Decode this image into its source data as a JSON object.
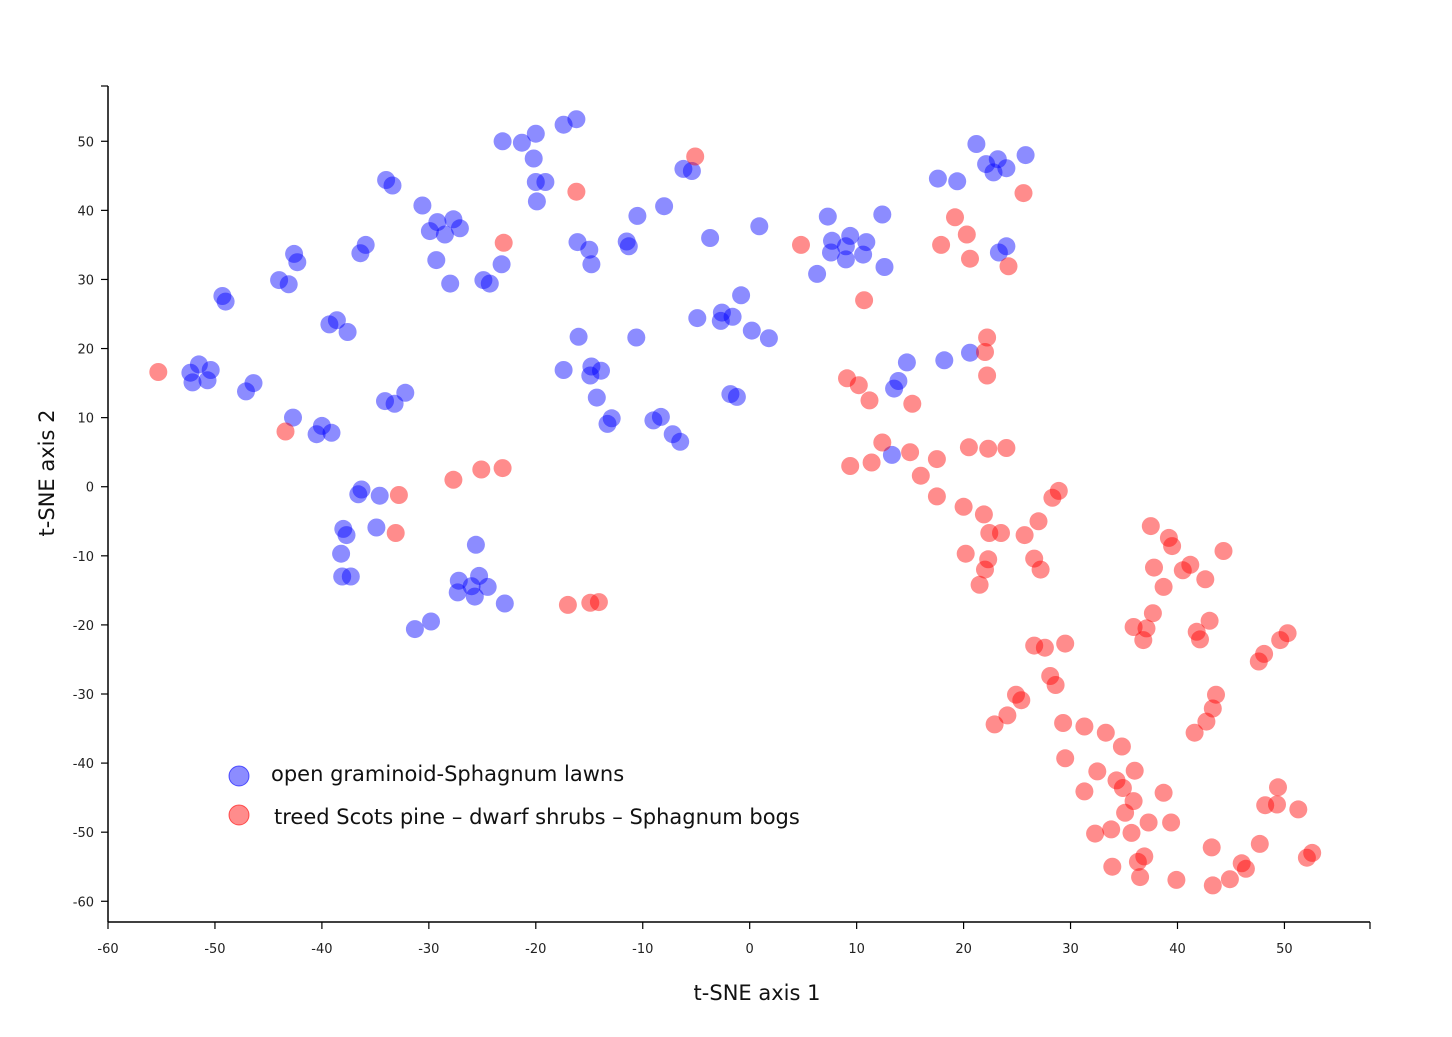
{
  "chart_data": {
    "type": "scatter",
    "title": "",
    "xlabel": "t-SNE axis 1",
    "ylabel": "t-SNE axis 2",
    "xlim": [
      -60,
      58
    ],
    "ylim": [
      -63,
      58
    ],
    "xticks": [
      -60,
      -50,
      -40,
      -30,
      -20,
      -10,
      0,
      10,
      20,
      30,
      40,
      50
    ],
    "yticks": [
      -60,
      -50,
      -40,
      -30,
      -20,
      -10,
      0,
      10,
      20,
      30,
      40,
      50
    ],
    "grid": false,
    "legend_position": "bottom-left",
    "series": [
      {
        "name": "open graminoid-Sphagnum lawns",
        "color": "#0000ff",
        "points": [
          [
            -23.1,
            50.0
          ],
          [
            -21.3,
            49.8
          ],
          [
            -20.0,
            51.1
          ],
          [
            -17.4,
            52.4
          ],
          [
            -16.2,
            53.2
          ],
          [
            -20.2,
            47.5
          ],
          [
            -20.0,
            44.1
          ],
          [
            -19.1,
            44.1
          ],
          [
            -19.9,
            41.3
          ],
          [
            -34.0,
            44.4
          ],
          [
            -33.4,
            43.6
          ],
          [
            -30.6,
            40.7
          ],
          [
            -29.9,
            37.0
          ],
          [
            -29.2,
            38.3
          ],
          [
            -28.5,
            36.5
          ],
          [
            -27.7,
            38.7
          ],
          [
            -27.1,
            37.4
          ],
          [
            -29.3,
            32.8
          ],
          [
            -28.0,
            29.4
          ],
          [
            -24.9,
            29.9
          ],
          [
            -24.3,
            29.4
          ],
          [
            -23.2,
            32.2
          ],
          [
            -35.9,
            35.0
          ],
          [
            -36.4,
            33.8
          ],
          [
            -42.6,
            33.7
          ],
          [
            -42.3,
            32.5
          ],
          [
            -44.0,
            29.9
          ],
          [
            -43.1,
            29.3
          ],
          [
            -49.3,
            27.6
          ],
          [
            -49.0,
            26.8
          ],
          [
            -38.6,
            24.1
          ],
          [
            -39.3,
            23.5
          ],
          [
            -37.6,
            22.4
          ],
          [
            -52.3,
            16.5
          ],
          [
            -51.5,
            17.7
          ],
          [
            -50.4,
            16.9
          ],
          [
            -52.1,
            15.1
          ],
          [
            -50.7,
            15.4
          ],
          [
            -46.4,
            15.0
          ],
          [
            -47.1,
            13.8
          ],
          [
            -34.1,
            12.4
          ],
          [
            -33.2,
            12.0
          ],
          [
            -32.2,
            13.6
          ],
          [
            -42.7,
            10.0
          ],
          [
            -40.0,
            8.8
          ],
          [
            -40.5,
            7.6
          ],
          [
            -39.1,
            7.8
          ],
          [
            -36.3,
            -0.4
          ],
          [
            -36.6,
            -1.1
          ],
          [
            -34.6,
            -1.3
          ],
          [
            -38.0,
            -6.1
          ],
          [
            -37.7,
            -7.0
          ],
          [
            -38.2,
            -9.7
          ],
          [
            -38.1,
            -13.0
          ],
          [
            -37.3,
            -13.0
          ],
          [
            -34.9,
            -5.9
          ],
          [
            -25.6,
            -8.4
          ],
          [
            -27.2,
            -13.6
          ],
          [
            -25.3,
            -12.9
          ],
          [
            -26.0,
            -14.4
          ],
          [
            -24.5,
            -14.5
          ],
          [
            -27.3,
            -15.3
          ],
          [
            -25.7,
            -15.9
          ],
          [
            -22.9,
            -16.9
          ],
          [
            -29.8,
            -19.5
          ],
          [
            -31.3,
            -20.6
          ],
          [
            -16.1,
            35.4
          ],
          [
            -15.0,
            34.3
          ],
          [
            -14.8,
            32.2
          ],
          [
            -11.5,
            35.5
          ],
          [
            -11.3,
            34.8
          ],
          [
            -10.5,
            39.2
          ],
          [
            -8.0,
            40.6
          ],
          [
            -6.2,
            46.0
          ],
          [
            -5.4,
            45.7
          ],
          [
            -3.7,
            36.0
          ],
          [
            0.9,
            37.7
          ],
          [
            -16.0,
            21.7
          ],
          [
            -10.6,
            21.6
          ],
          [
            -17.4,
            16.9
          ],
          [
            -14.8,
            17.4
          ],
          [
            -14.9,
            16.1
          ],
          [
            -13.9,
            16.8
          ],
          [
            -14.3,
            12.9
          ],
          [
            -13.3,
            9.1
          ],
          [
            -12.9,
            9.9
          ],
          [
            -9.0,
            9.6
          ],
          [
            -8.3,
            10.1
          ],
          [
            -7.2,
            7.6
          ],
          [
            -6.5,
            6.5
          ],
          [
            -4.9,
            24.4
          ],
          [
            -2.6,
            25.2
          ],
          [
            -2.7,
            24.0
          ],
          [
            -1.6,
            24.6
          ],
          [
            -1.8,
            13.4
          ],
          [
            -1.2,
            13.0
          ],
          [
            -0.8,
            27.7
          ],
          [
            0.2,
            22.6
          ],
          [
            1.8,
            21.5
          ],
          [
            7.3,
            39.1
          ],
          [
            7.7,
            35.6
          ],
          [
            7.6,
            33.9
          ],
          [
            9.0,
            34.8
          ],
          [
            9.4,
            36.3
          ],
          [
            9.0,
            32.9
          ],
          [
            10.6,
            33.6
          ],
          [
            10.9,
            35.4
          ],
          [
            12.4,
            39.4
          ],
          [
            12.6,
            31.8
          ],
          [
            6.3,
            30.8
          ],
          [
            17.6,
            44.6
          ],
          [
            19.4,
            44.2
          ],
          [
            21.2,
            49.6
          ],
          [
            22.1,
            46.7
          ],
          [
            22.8,
            45.5
          ],
          [
            23.2,
            47.4
          ],
          [
            24.0,
            46.1
          ],
          [
            25.8,
            48.0
          ],
          [
            23.3,
            33.9
          ],
          [
            24.0,
            34.8
          ],
          [
            14.7,
            18.0
          ],
          [
            13.9,
            15.3
          ],
          [
            13.5,
            14.2
          ],
          [
            18.2,
            18.3
          ],
          [
            20.6,
            19.4
          ],
          [
            13.3,
            4.6
          ]
        ]
      },
      {
        "name": "treed Scots pine – dwarf shrubs – Sphagnum bogs",
        "color": "#ff0000",
        "points": [
          [
            -55.3,
            16.6
          ],
          [
            -43.4,
            8.0
          ],
          [
            -32.8,
            -1.2
          ],
          [
            -33.1,
            -6.7
          ],
          [
            -27.7,
            1.0
          ],
          [
            -25.1,
            2.5
          ],
          [
            -23.1,
            2.7
          ],
          [
            -23.0,
            35.3
          ],
          [
            -16.2,
            42.7
          ],
          [
            -5.1,
            47.8
          ],
          [
            -17.0,
            -17.1
          ],
          [
            -14.9,
            -16.8
          ],
          [
            -14.1,
            -16.7
          ],
          [
            4.8,
            35.0
          ],
          [
            10.7,
            27.0
          ],
          [
            9.1,
            15.7
          ],
          [
            10.2,
            14.7
          ],
          [
            11.2,
            12.5
          ],
          [
            15.2,
            12.0
          ],
          [
            12.4,
            6.4
          ],
          [
            11.4,
            3.5
          ],
          [
            9.4,
            3.0
          ],
          [
            15.0,
            5.0
          ],
          [
            17.5,
            4.0
          ],
          [
            16.0,
            1.6
          ],
          [
            17.5,
            -1.4
          ],
          [
            19.2,
            39.0
          ],
          [
            17.9,
            35.0
          ],
          [
            20.3,
            36.5
          ],
          [
            20.6,
            33.0
          ],
          [
            24.2,
            31.9
          ],
          [
            25.6,
            42.5
          ],
          [
            22.2,
            21.6
          ],
          [
            22.0,
            19.5
          ],
          [
            22.2,
            16.1
          ],
          [
            20.5,
            5.7
          ],
          [
            22.3,
            5.5
          ],
          [
            24.0,
            5.6
          ],
          [
            20.0,
            -2.9
          ],
          [
            21.9,
            -4.0
          ],
          [
            22.4,
            -6.7
          ],
          [
            23.5,
            -6.7
          ],
          [
            20.2,
            -9.7
          ],
          [
            22.3,
            -10.5
          ],
          [
            22.0,
            -12.0
          ],
          [
            21.5,
            -14.2
          ],
          [
            27.0,
            -5.0
          ],
          [
            25.7,
            -7.0
          ],
          [
            26.6,
            -10.4
          ],
          [
            27.2,
            -12.0
          ],
          [
            28.3,
            -1.6
          ],
          [
            28.9,
            -0.6
          ],
          [
            26.6,
            -23.0
          ],
          [
            27.6,
            -23.3
          ],
          [
            29.5,
            -22.7
          ],
          [
            28.1,
            -27.4
          ],
          [
            28.6,
            -28.7
          ],
          [
            24.9,
            -30.1
          ],
          [
            25.4,
            -30.9
          ],
          [
            24.1,
            -33.1
          ],
          [
            22.9,
            -34.4
          ],
          [
            29.3,
            -34.2
          ],
          [
            31.3,
            -34.7
          ],
          [
            33.3,
            -35.6
          ],
          [
            34.8,
            -37.6
          ],
          [
            29.5,
            -39.3
          ],
          [
            32.5,
            -41.2
          ],
          [
            34.3,
            -42.5
          ],
          [
            34.9,
            -43.6
          ],
          [
            36.0,
            -41.1
          ],
          [
            31.3,
            -44.1
          ],
          [
            37.5,
            -5.7
          ],
          [
            39.2,
            -7.4
          ],
          [
            39.5,
            -8.6
          ],
          [
            44.3,
            -9.3
          ],
          [
            37.8,
            -11.7
          ],
          [
            38.7,
            -14.5
          ],
          [
            40.5,
            -12.1
          ],
          [
            41.2,
            -11.3
          ],
          [
            42.6,
            -13.4
          ],
          [
            37.7,
            -18.3
          ],
          [
            35.9,
            -20.3
          ],
          [
            37.1,
            -20.5
          ],
          [
            36.8,
            -22.2
          ],
          [
            41.8,
            -21.0
          ],
          [
            42.1,
            -22.1
          ],
          [
            43.0,
            -19.4
          ],
          [
            47.6,
            -25.3
          ],
          [
            48.1,
            -24.2
          ],
          [
            49.6,
            -22.2
          ],
          [
            50.3,
            -21.2
          ],
          [
            43.6,
            -30.1
          ],
          [
            43.3,
            -32.1
          ],
          [
            42.7,
            -34.0
          ],
          [
            41.6,
            -35.6
          ],
          [
            35.9,
            -45.5
          ],
          [
            35.1,
            -47.2
          ],
          [
            37.3,
            -48.6
          ],
          [
            38.7,
            -44.3
          ],
          [
            39.4,
            -48.6
          ],
          [
            32.3,
            -50.2
          ],
          [
            33.8,
            -49.6
          ],
          [
            35.7,
            -50.1
          ],
          [
            33.9,
            -55.0
          ],
          [
            36.3,
            -54.3
          ],
          [
            36.5,
            -56.5
          ],
          [
            36.9,
            -53.5
          ],
          [
            39.9,
            -56.9
          ],
          [
            43.2,
            -52.2
          ],
          [
            43.3,
            -57.7
          ],
          [
            44.9,
            -56.8
          ],
          [
            46.0,
            -54.5
          ],
          [
            46.4,
            -55.3
          ],
          [
            47.7,
            -51.7
          ],
          [
            48.2,
            -46.1
          ],
          [
            49.4,
            -43.5
          ],
          [
            49.3,
            -46.0
          ],
          [
            51.3,
            -46.7
          ],
          [
            52.1,
            -53.7
          ],
          [
            52.6,
            -53.0
          ]
        ]
      }
    ]
  }
}
